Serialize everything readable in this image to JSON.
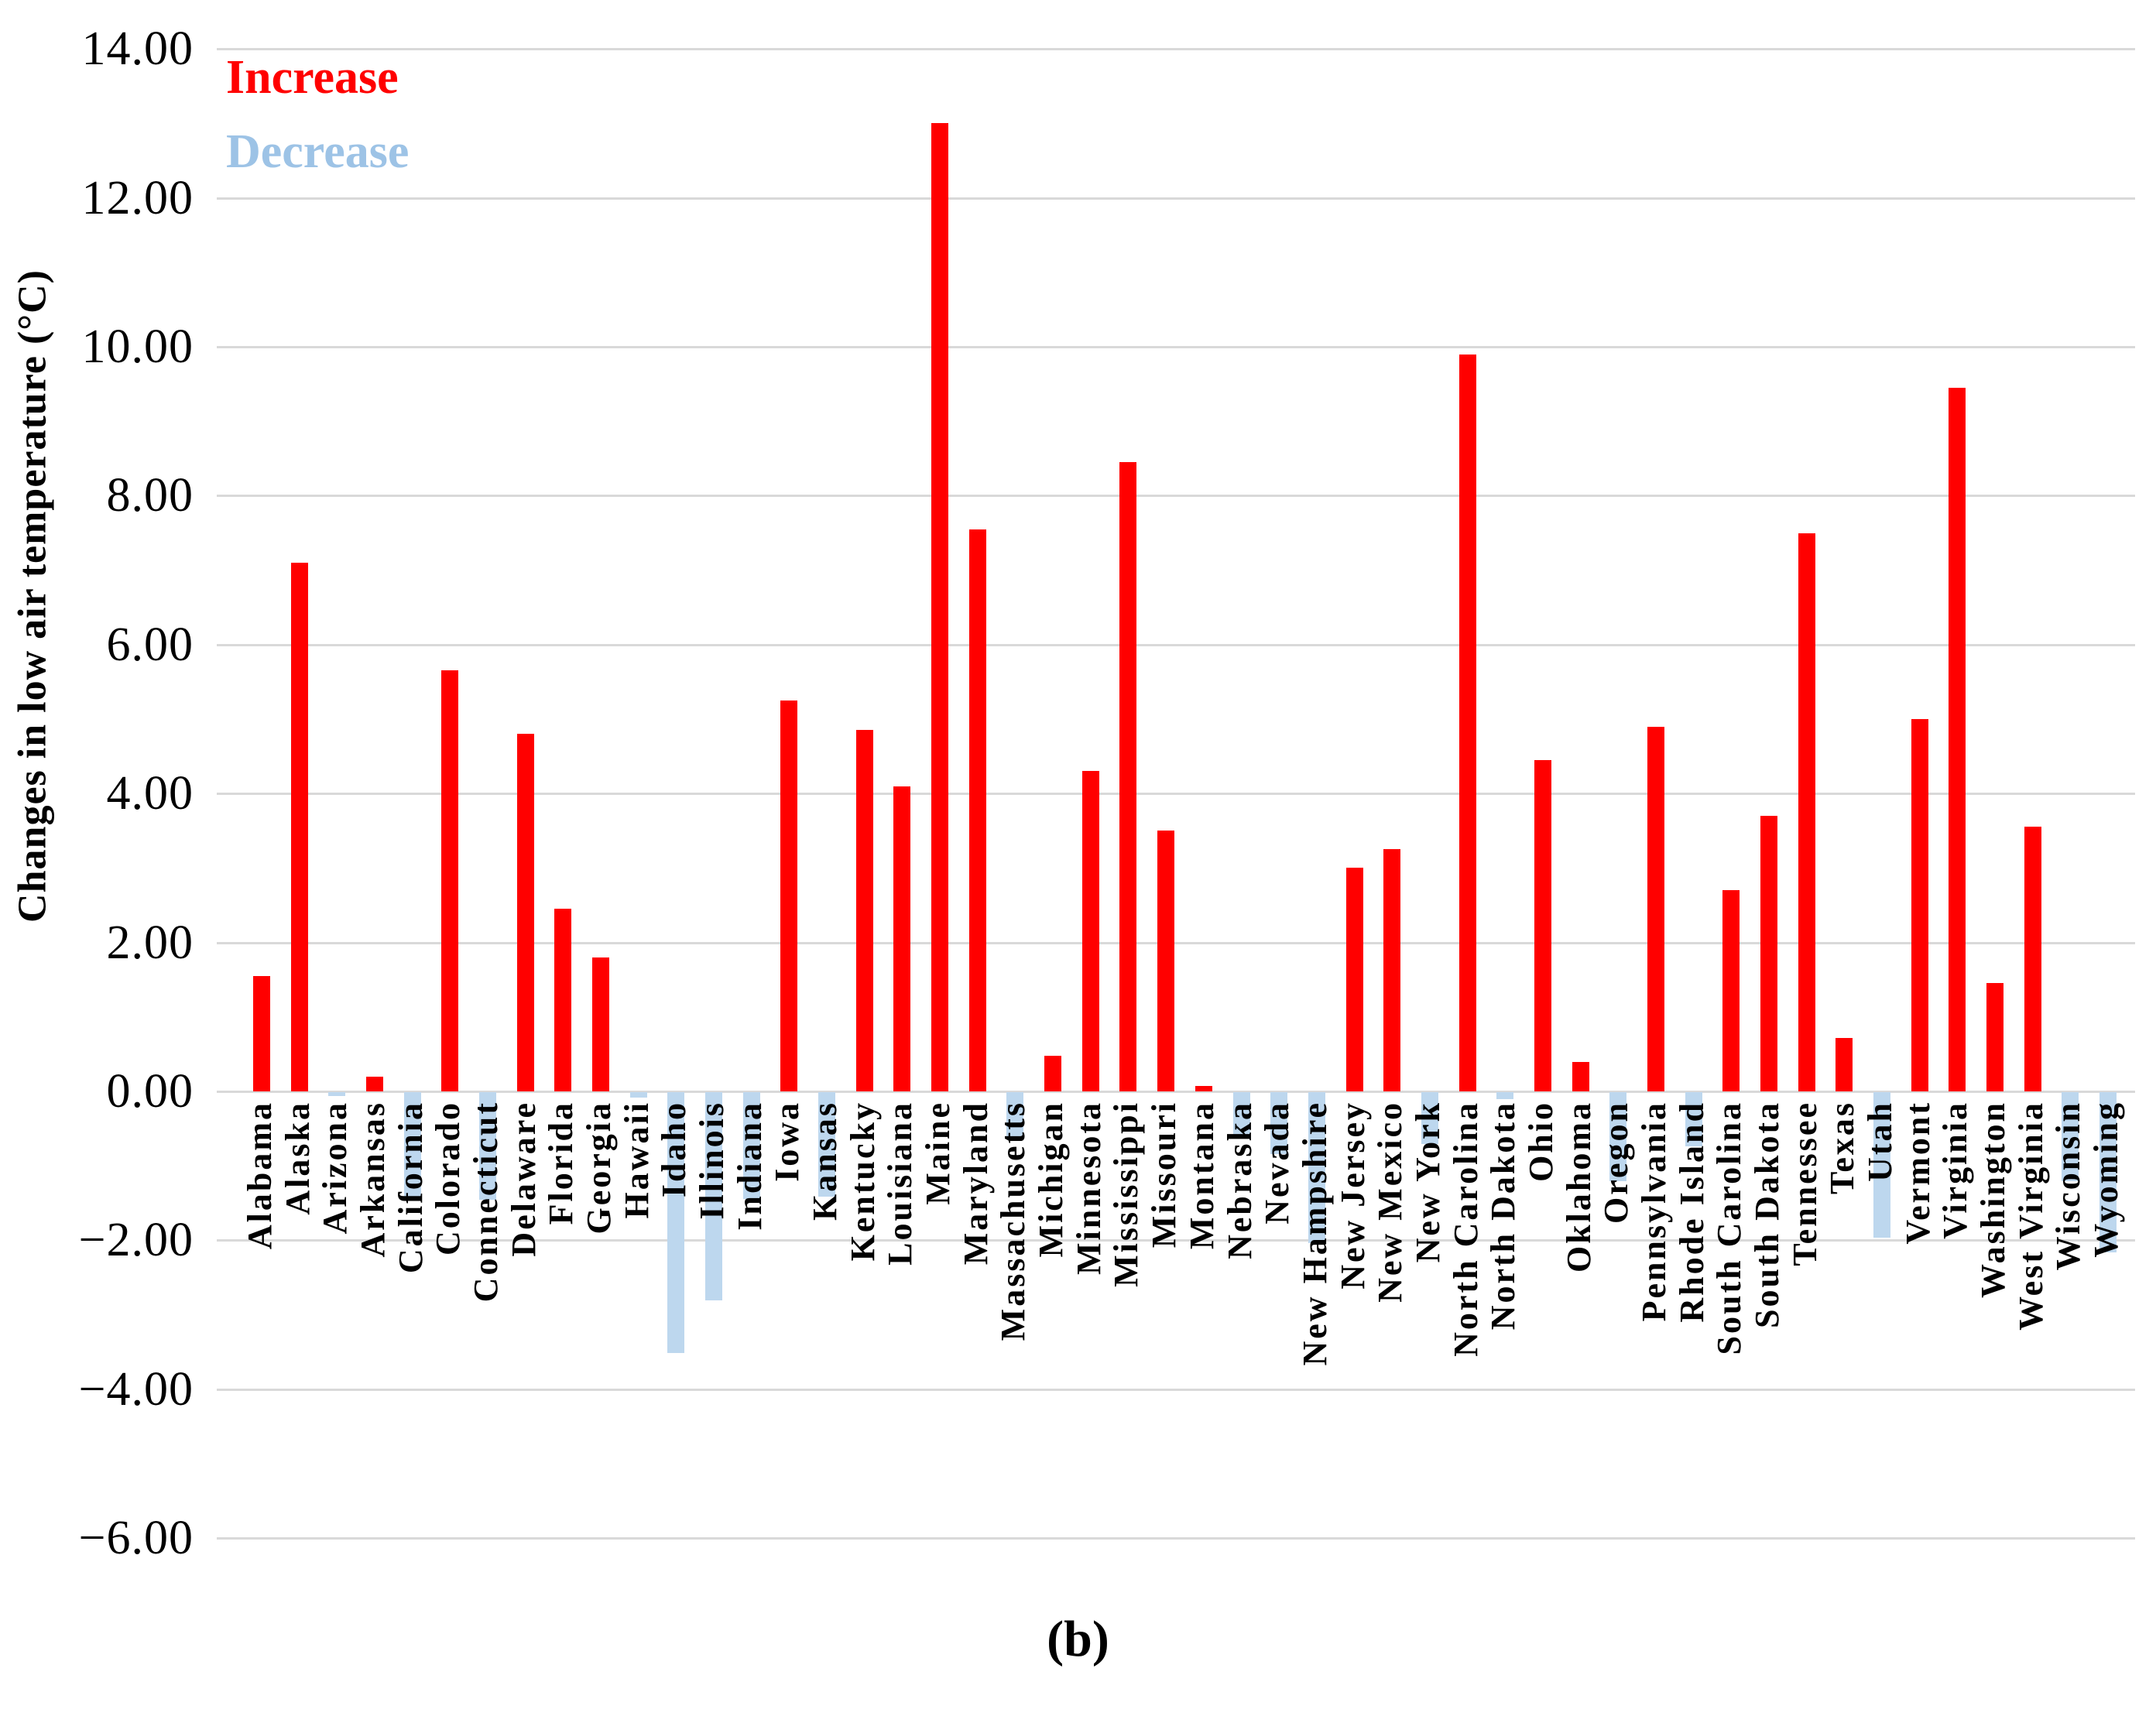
{
  "figure": {
    "caption": "(b)"
  },
  "legend": {
    "increase_label": "Increase",
    "decrease_label": "Decrease"
  },
  "y_axis": {
    "title": "Changes in low air temperature (°C)",
    "tick_labels": [
      "14.00",
      "12.00",
      "10.00",
      "8.00",
      "6.00",
      "4.00",
      "2.00",
      "0.00",
      "−2.00",
      "−4.00",
      "−6.00"
    ],
    "max": 14,
    "min": -6,
    "step": 2
  },
  "colors": {
    "increase": "#FF0000",
    "decrease": "#BDD7EE",
    "legend_decrease_text": "#9DC3E6",
    "gridline": "#D9D9D9",
    "text": "#000000"
  },
  "chart_data": {
    "type": "bar",
    "title": "",
    "xlabel": "",
    "ylabel": "Changes in low air temperature (°C)",
    "ylim": [
      -6,
      14
    ],
    "grid": true,
    "legend_position": "top-left",
    "series_colors": {
      "positive": "#FF0000",
      "negative": "#BDD7EE"
    },
    "legend": [
      {
        "label": "Increase",
        "color": "#FF0000"
      },
      {
        "label": "Decrease",
        "color": "#BDD7EE"
      }
    ],
    "categories": [
      "Alabama",
      "Alaska",
      "Arizona",
      "Arkansas",
      "California",
      "Colorado",
      "Connecticut",
      "Delaware",
      "Florida",
      "Georgia",
      "Hawaii",
      "Idaho",
      "Illinois",
      "Indiana",
      "Iowa",
      "Kansas",
      "Kentucky",
      "Louisiana",
      "Maine",
      "Maryland",
      "Massachusetts",
      "Michigan",
      "Minnesota",
      "Mississippi",
      "Missouri",
      "Montana",
      "Nebraska",
      "Nevada",
      "New Hampshire",
      "New Jersey",
      "New Mexico",
      "New York",
      "North Carolina",
      "North Dakota",
      "Ohio",
      "Oklahoma",
      "Oregon",
      "Pennsylvania",
      "Rhode Island",
      "South Carolina",
      "South Dakota",
      "Tennessee",
      "Texas",
      "Utah",
      "Vermont",
      "Virginia",
      "Washington",
      "West Virginia",
      "Wisconsin",
      "Wyoming"
    ],
    "values": [
      1.55,
      7.1,
      -0.05,
      0.2,
      -1.4,
      5.65,
      -1.45,
      4.8,
      2.45,
      1.8,
      -0.07,
      -3.5,
      -2.8,
      -1.43,
      5.25,
      -1.4,
      4.85,
      4.1,
      13.0,
      7.55,
      -0.6,
      0.48,
      4.3,
      8.45,
      3.5,
      0.07,
      -0.62,
      -0.83,
      -2.03,
      3.0,
      3.25,
      -0.7,
      9.9,
      -0.09,
      4.45,
      0.4,
      -1.2,
      4.9,
      -0.73,
      2.7,
      3.7,
      7.5,
      0.72,
      -1.95,
      5.0,
      9.45,
      1.46,
      3.55,
      -1.2,
      -2.15
    ]
  }
}
